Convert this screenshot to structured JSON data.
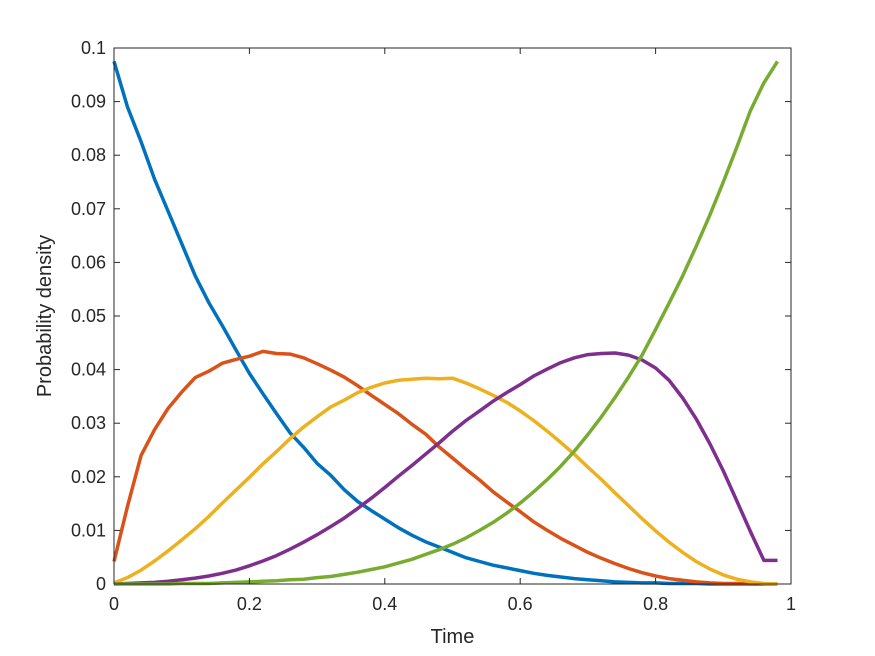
{
  "chart_data": {
    "type": "line",
    "title": "",
    "xlabel": "Time",
    "ylabel": "Probability density",
    "xlim": [
      0,
      1
    ],
    "ylim": [
      0,
      0.1
    ],
    "xticks": [
      0,
      0.2,
      0.4,
      0.6,
      0.8,
      1
    ],
    "xtick_labels": [
      "0",
      "0.2",
      "0.4",
      "0.6",
      "0.8",
      "1"
    ],
    "yticks": [
      0,
      0.01,
      0.02,
      0.03,
      0.04,
      0.05,
      0.06,
      0.07,
      0.08,
      0.09,
      0.1
    ],
    "ytick_labels": [
      "0",
      "0.01",
      "0.02",
      "0.03",
      "0.04",
      "0.05",
      "0.06",
      "0.07",
      "0.08",
      "0.09",
      "0.1"
    ],
    "grid": false,
    "legend": "none",
    "x": [
      0,
      0.02,
      0.04,
      0.06,
      0.08,
      0.1,
      0.12,
      0.14,
      0.16,
      0.18,
      0.2,
      0.22,
      0.24,
      0.26,
      0.28,
      0.3,
      0.32,
      0.34,
      0.36,
      0.38,
      0.4,
      0.42,
      0.44,
      0.46,
      0.48,
      0.5,
      0.52,
      0.54,
      0.56,
      0.58,
      0.6,
      0.62,
      0.64,
      0.66,
      0.68,
      0.7,
      0.72,
      0.74,
      0.76,
      0.78,
      0.8,
      0.82,
      0.84,
      0.86,
      0.88,
      0.9,
      0.92,
      0.94,
      0.96,
      0.98
    ],
    "series": [
      {
        "color": "#0072BD",
        "values": [
          0.0975,
          0.089,
          0.0825,
          0.0755,
          0.0695,
          0.0635,
          0.0575,
          0.0525,
          0.0482,
          0.0437,
          0.0393,
          0.0355,
          0.0318,
          0.0282,
          0.0255,
          0.0225,
          0.0203,
          0.0176,
          0.0154,
          0.0137,
          0.0121,
          0.0105,
          0.0091,
          0.0079,
          0.0069,
          0.0059,
          0.0049,
          0.0042,
          0.0035,
          0.003,
          0.0025,
          0.002,
          0.0016,
          0.0013,
          0.001,
          0.0008,
          0.0006,
          0.0004,
          0.0003,
          0.0002,
          0.0002,
          0.0001,
          0.0001,
          0.0001,
          0,
          0,
          0,
          0,
          0,
          0
        ]
      },
      {
        "color": "#D95319",
        "values": [
          0.0042,
          0.0145,
          0.024,
          0.0288,
          0.0328,
          0.0358,
          0.0385,
          0.0397,
          0.0412,
          0.0419,
          0.0425,
          0.0434,
          0.043,
          0.0429,
          0.0422,
          0.0411,
          0.0399,
          0.0386,
          0.037,
          0.0352,
          0.0335,
          0.0318,
          0.0298,
          0.028,
          0.0256,
          0.0235,
          0.0214,
          0.0194,
          0.0172,
          0.0153,
          0.0135,
          0.0116,
          0.01,
          0.0085,
          0.0072,
          0.0059,
          0.0048,
          0.0038,
          0.0029,
          0.0021,
          0.0015,
          0.001,
          0.0007,
          0.0004,
          0.0002,
          0.0001,
          0.0001,
          0,
          0,
          0
        ]
      },
      {
        "color": "#EDB120",
        "values": [
          0.0002,
          0.0012,
          0.0026,
          0.0043,
          0.0062,
          0.0082,
          0.0103,
          0.0126,
          0.0151,
          0.0175,
          0.0199,
          0.0224,
          0.0247,
          0.0271,
          0.0293,
          0.0312,
          0.033,
          0.0343,
          0.0357,
          0.0367,
          0.0375,
          0.038,
          0.0382,
          0.0384,
          0.0383,
          0.0384,
          0.0375,
          0.0364,
          0.0352,
          0.0339,
          0.0323,
          0.0305,
          0.0285,
          0.0264,
          0.0242,
          0.0218,
          0.0195,
          0.017,
          0.0146,
          0.0122,
          0.0099,
          0.0078,
          0.0059,
          0.0042,
          0.0028,
          0.0017,
          0.0009,
          0.0004,
          0.0001,
          0
        ]
      },
      {
        "color": "#7E2F8E",
        "values": [
          0,
          0.0001,
          0.0002,
          0.0003,
          0.0005,
          0.0008,
          0.0011,
          0.0015,
          0.002,
          0.0026,
          0.0034,
          0.0043,
          0.0053,
          0.0065,
          0.0078,
          0.0092,
          0.0107,
          0.0123,
          0.0141,
          0.016,
          0.018,
          0.0201,
          0.0221,
          0.0242,
          0.0263,
          0.0285,
          0.0305,
          0.0323,
          0.0341,
          0.0357,
          0.0372,
          0.0388,
          0.0401,
          0.0413,
          0.0422,
          0.0428,
          0.043,
          0.0431,
          0.0427,
          0.0418,
          0.0403,
          0.038,
          0.0347,
          0.0308,
          0.0262,
          0.0211,
          0.0155,
          0.0098,
          0.0044,
          0.0044
        ]
      },
      {
        "color": "#77AC30",
        "values": [
          0,
          0,
          0,
          0,
          0,
          0.0001,
          0.0001,
          0.0001,
          0.0002,
          0.0003,
          0.0004,
          0.0005,
          0.0006,
          0.0008,
          0.0009,
          0.0012,
          0.0014,
          0.0018,
          0.0022,
          0.0027,
          0.0032,
          0.0039,
          0.0046,
          0.0055,
          0.0064,
          0.0074,
          0.0086,
          0.01,
          0.0115,
          0.0132,
          0.0151,
          0.0172,
          0.0195,
          0.022,
          0.0248,
          0.0279,
          0.0312,
          0.0348,
          0.0386,
          0.0427,
          0.0475,
          0.0524,
          0.0575,
          0.063,
          0.0688,
          0.075,
          0.0815,
          0.0883,
          0.0935,
          0.0975
        ]
      }
    ]
  }
}
